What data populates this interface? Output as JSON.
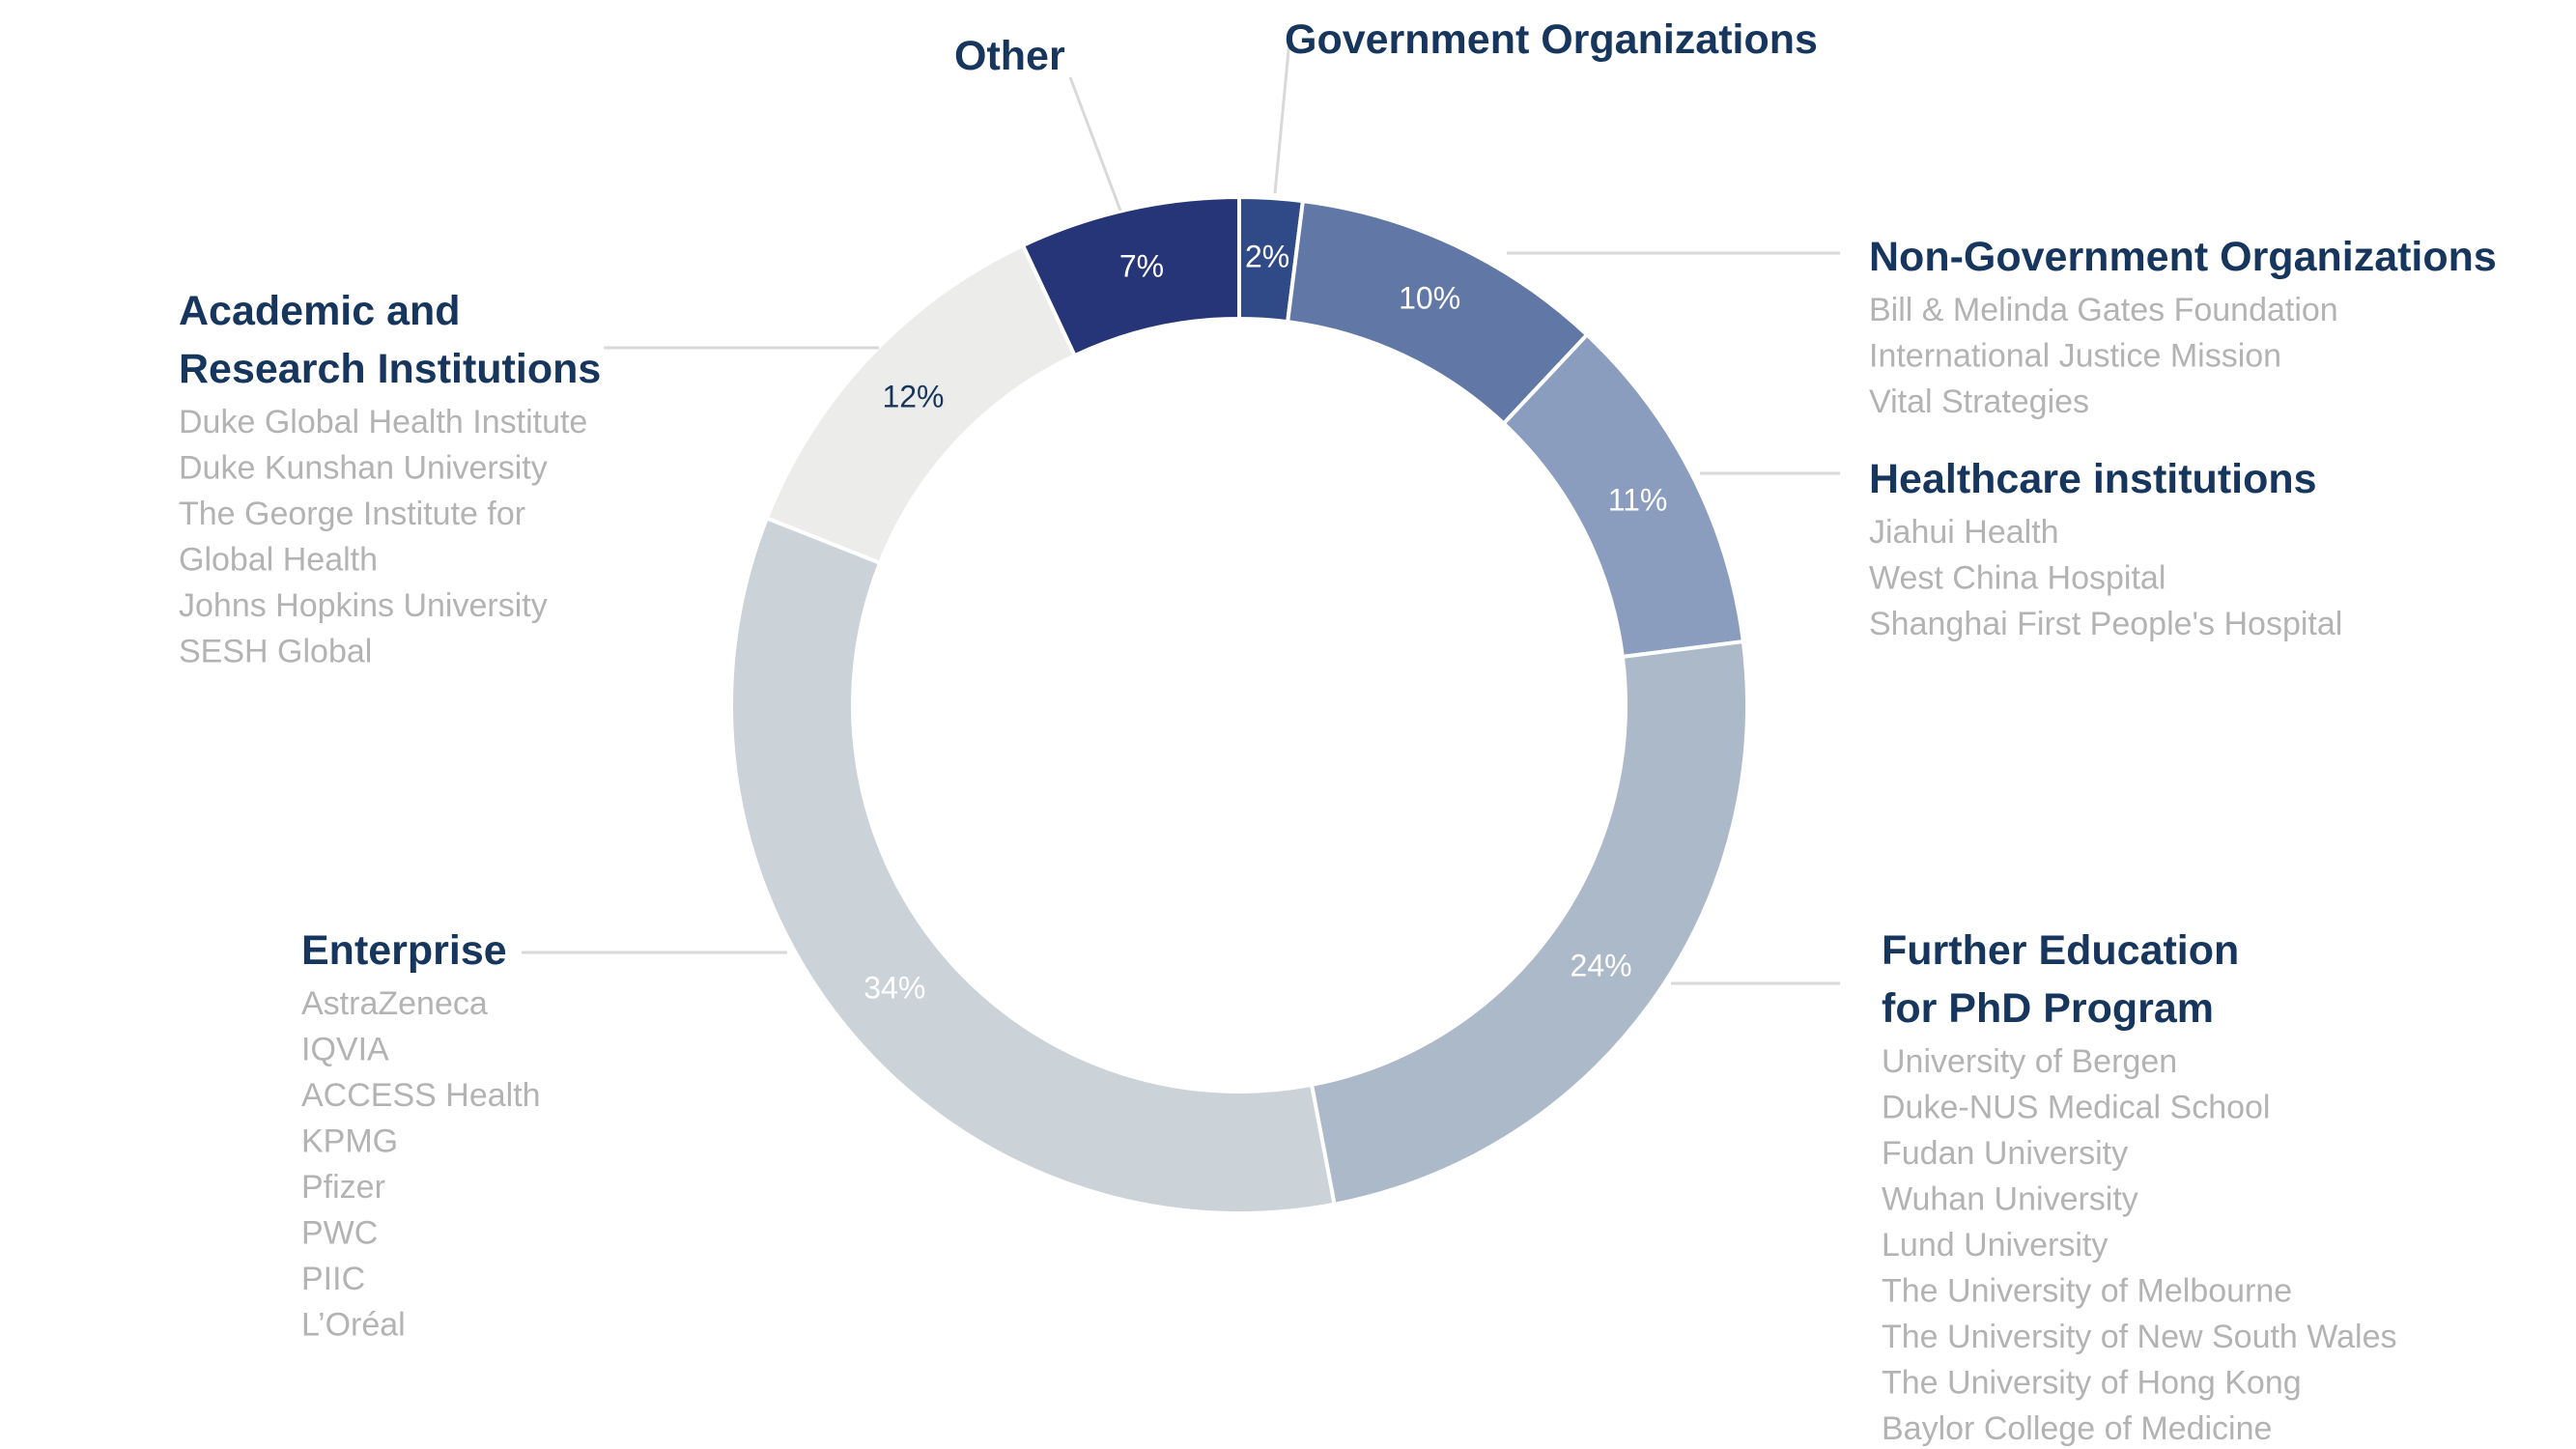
{
  "chart_data": {
    "type": "pie",
    "style": "donut",
    "slices": [
      {
        "name": "Government Organizations",
        "value": 2,
        "label": "2%",
        "color": "#2f4a86",
        "label_color": "#ffffff",
        "items": []
      },
      {
        "name": "Non-Government Organizations",
        "value": 10,
        "label": "10%",
        "color": "#6177a6",
        "label_color": "#ffffff",
        "items": [
          "Bill & Melinda Gates Foundation",
          "International Justice Mission",
          "Vital Strategies"
        ]
      },
      {
        "name": "Healthcare institutions",
        "value": 11,
        "label": "11%",
        "color": "#8a9dbf",
        "label_color": "#ffffff",
        "items": [
          "Jiahui Health",
          "West China Hospital",
          "Shanghai First People's Hospital"
        ]
      },
      {
        "name": "Further Education for PhD Program",
        "title_lines": [
          "Further Education",
          "for PhD Program"
        ],
        "value": 24,
        "label": "24%",
        "color": "#acb9c9",
        "label_color": "#ffffff",
        "items": [
          "University of Bergen",
          "Duke-NUS Medical School",
          "Fudan University",
          "Wuhan University",
          "Lund University",
          "The University of Melbourne",
          "The University of New South Wales",
          "The University of Hong Kong",
          "Baylor College of Medicine"
        ]
      },
      {
        "name": "Enterprise",
        "value": 34,
        "label": "34%",
        "color": "#cbd2d8",
        "label_color": "#ffffff",
        "items": [
          "AstraZeneca",
          "IQVIA",
          "ACCESS Health",
          "KPMG",
          "Pfizer",
          "PWC",
          "PIIC",
          "L’Oréal"
        ]
      },
      {
        "name": "Academic and Research Institutions",
        "title_lines": [
          "Academic and",
          "Research Institutions"
        ],
        "value": 12,
        "label": "12%",
        "color": "#ececea",
        "label_color": "#17365d",
        "items": [
          "Duke Global Health Institute",
          "Duke Kunshan University",
          "The George Institute for",
          "Global Health",
          "Johns Hopkins University",
          "SESH Global"
        ]
      },
      {
        "name": "Other",
        "value": 7,
        "label": "7%",
        "color": "#263577",
        "label_color": "#ffffff",
        "items": []
      }
    ]
  }
}
